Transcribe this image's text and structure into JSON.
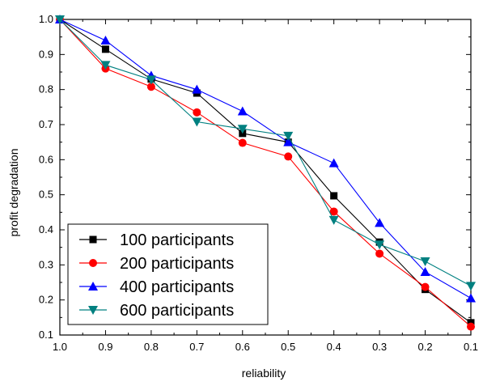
{
  "chart_data": {
    "type": "line",
    "title": "",
    "xlabel": "reliability",
    "ylabel": "profit degradation",
    "x": [
      1.0,
      0.9,
      0.8,
      0.7,
      0.6,
      0.5,
      0.4,
      0.3,
      0.2,
      0.1
    ],
    "xlim": [
      1.0,
      0.1
    ],
    "ylim": [
      0.1,
      1.0
    ],
    "x_ticks": [
      "1.0",
      "0.9",
      "0.8",
      "0.7",
      "0.6",
      "0.5",
      "0.4",
      "0.3",
      "0.2",
      "0.1"
    ],
    "y_ticks": [
      "0.1",
      "0.2",
      "0.3",
      "0.4",
      "0.5",
      "0.6",
      "0.7",
      "0.8",
      "0.9",
      "1.0"
    ],
    "grid": false,
    "legend_position": "bottom-left",
    "series": [
      {
        "name": "100 participants",
        "color": "#000000",
        "marker": "square",
        "values": [
          1.0,
          0.915,
          0.83,
          0.79,
          0.675,
          0.65,
          0.497,
          0.365,
          0.23,
          0.135
        ]
      },
      {
        "name": "200 participants",
        "color": "#ff0000",
        "marker": "circle",
        "values": [
          1.0,
          0.86,
          0.808,
          0.735,
          0.648,
          0.609,
          0.452,
          0.332,
          0.237,
          0.124
        ]
      },
      {
        "name": "400 participants",
        "color": "#0000ff",
        "marker": "triangle-up",
        "values": [
          1.0,
          0.94,
          0.84,
          0.8,
          0.738,
          0.65,
          0.59,
          0.42,
          0.28,
          0.205
        ]
      },
      {
        "name": "600 participants",
        "color": "#008080",
        "marker": "triangle-down",
        "values": [
          1.0,
          0.87,
          0.828,
          0.708,
          0.688,
          0.668,
          0.428,
          0.358,
          0.31,
          0.24
        ]
      }
    ]
  }
}
